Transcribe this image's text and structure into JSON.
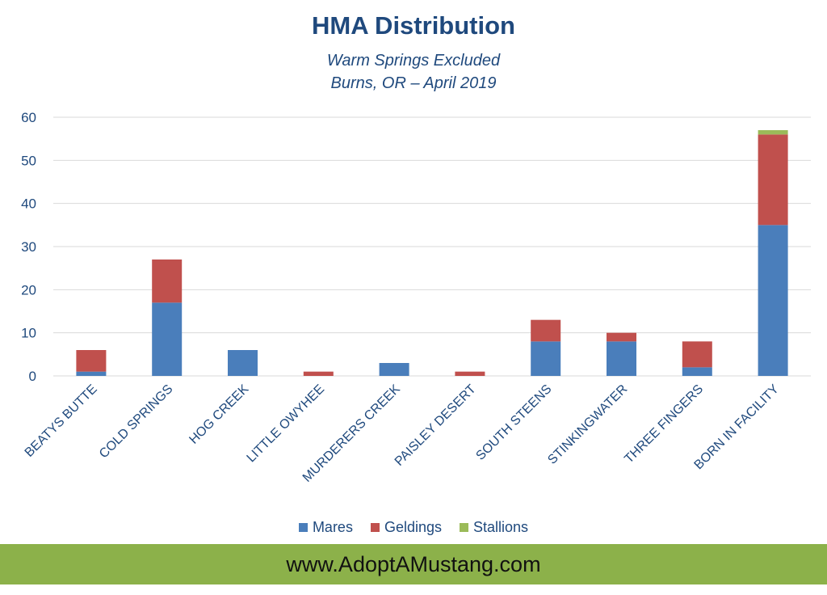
{
  "chart_data": {
    "type": "bar",
    "stacked": true,
    "title": "HMA Distribution",
    "subtitle": [
      "Warm Springs Excluded",
      "Burns, OR – April 2019"
    ],
    "xlabel": "",
    "ylabel": "",
    "ylim": [
      0,
      60
    ],
    "yticks": [
      "0",
      "10",
      "20",
      "30",
      "40",
      "50",
      "60"
    ],
    "grid": true,
    "legend_position": "bottom",
    "categories": [
      "BEATYS BUTTE",
      "COLD SPRINGS",
      "HOG CREEK",
      "LITTLE OWYHEE",
      "MURDERERS CREEK",
      "PAISLEY DESERT",
      "SOUTH STEENS",
      "STINKINGWATER",
      "THREE FINGERS",
      "BORN IN FACILITY"
    ],
    "series": [
      {
        "name": "Mares",
        "color": "#4a7ebb",
        "values": [
          1,
          17,
          6,
          0,
          3,
          0,
          8,
          8,
          2,
          35
        ]
      },
      {
        "name": "Geldings",
        "color": "#c0504d",
        "values": [
          5,
          10,
          0,
          1,
          0,
          1,
          5,
          2,
          6,
          21
        ]
      },
      {
        "name": "Stallions",
        "color": "#9bbb59",
        "values": [
          0,
          0,
          0,
          0,
          0,
          0,
          0,
          0,
          0,
          1
        ]
      }
    ]
  },
  "footer": {
    "text": "www.AdoptAMustang.com"
  },
  "colors": {
    "text": "#1f497d",
    "footer_bg": "#8cb14a",
    "grid": "#d9d9d9"
  }
}
